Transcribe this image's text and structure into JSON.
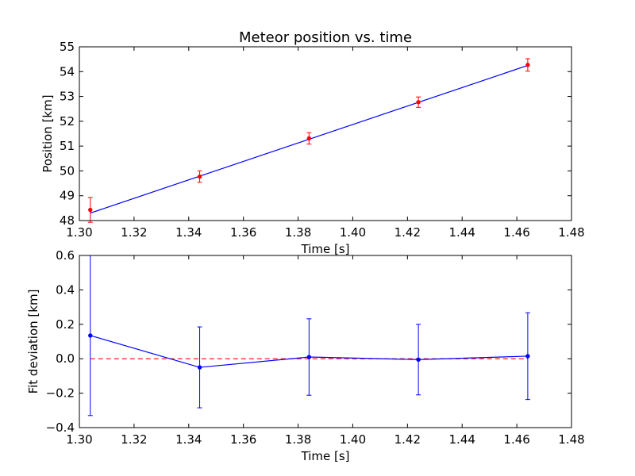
{
  "chart_data": [
    {
      "type": "scatter",
      "title": "Meteor position vs. time",
      "xlabel": "Time [s]",
      "ylabel": "Position [km]",
      "xlim": [
        1.3,
        1.48
      ],
      "ylim": [
        48,
        55
      ],
      "xticks": [
        "1.30",
        "1.32",
        "1.34",
        "1.36",
        "1.38",
        "1.40",
        "1.42",
        "1.44",
        "1.46",
        "1.48"
      ],
      "yticks": [
        "48",
        "49",
        "50",
        "51",
        "52",
        "53",
        "54",
        "55"
      ],
      "grid": false,
      "points": [
        {
          "x": 1.304,
          "y": 48.43,
          "err": 0.5
        },
        {
          "x": 1.344,
          "y": 49.77,
          "err": 0.23
        },
        {
          "x": 1.384,
          "y": 51.31,
          "err": 0.23
        },
        {
          "x": 1.424,
          "y": 52.77,
          "err": 0.21
        },
        {
          "x": 1.464,
          "y": 54.27,
          "err": 0.25
        }
      ],
      "points_color": "#ff0000",
      "fit_line": {
        "x": [
          1.304,
          1.464
        ],
        "y": [
          48.3,
          54.25
        ],
        "color": "#0000ff"
      }
    },
    {
      "type": "line",
      "title": "",
      "xlabel": "Time [s]",
      "ylabel": "Fit deviation [km]",
      "xlim": [
        1.3,
        1.48
      ],
      "ylim": [
        -0.4,
        0.6
      ],
      "xticks": [
        "1.30",
        "1.32",
        "1.34",
        "1.36",
        "1.38",
        "1.40",
        "1.42",
        "1.44",
        "1.46",
        "1.48"
      ],
      "yticks": [
        "−0.4",
        "−0.2",
        "0.0",
        "0.2",
        "0.4",
        "0.6"
      ],
      "grid": false,
      "points": [
        {
          "x": 1.304,
          "y": 0.135,
          "err": 0.465
        },
        {
          "x": 1.344,
          "y": -0.05,
          "err": 0.235
        },
        {
          "x": 1.384,
          "y": 0.01,
          "err": 0.222
        },
        {
          "x": 1.424,
          "y": -0.005,
          "err": 0.205
        },
        {
          "x": 1.464,
          "y": 0.015,
          "err": 0.252
        }
      ],
      "series_color": "#0000ff",
      "reference_line": {
        "y": 0.0,
        "x": [
          1.304,
          1.464
        ],
        "color": "#ff0000",
        "style": "dashed"
      }
    }
  ]
}
